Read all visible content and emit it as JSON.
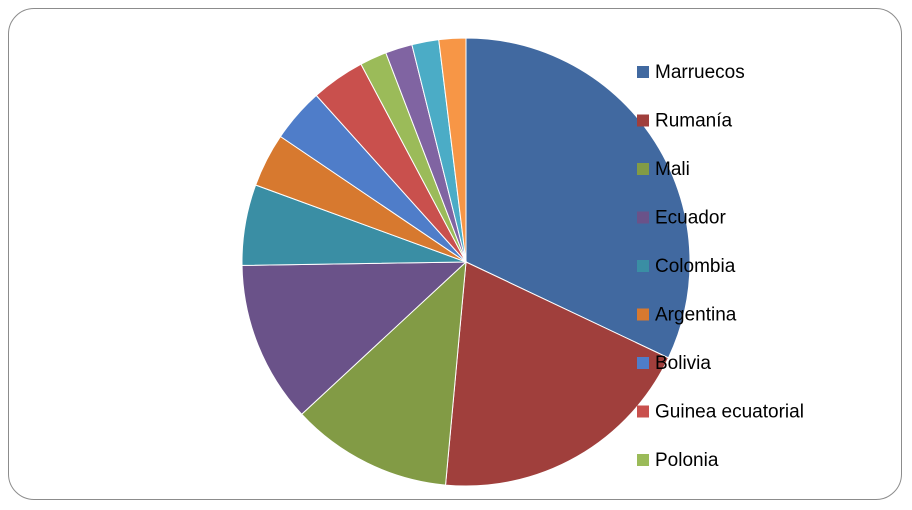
{
  "chart_data": {
    "type": "pie",
    "title": "",
    "slices": [
      {
        "label": "Marruecos",
        "value": 33,
        "color": "#4169A0"
      },
      {
        "label": "Rumanía",
        "value": 20,
        "color": "#A03F3C"
      },
      {
        "label": "Mali",
        "value": 12,
        "color": "#829B45"
      },
      {
        "label": "Ecuador",
        "value": 12,
        "color": "#6A5289"
      },
      {
        "label": "Colombia",
        "value": 6,
        "color": "#3A8EA4"
      },
      {
        "label": "Argentina",
        "value": 4,
        "color": "#D7792F"
      },
      {
        "label": "Bolivia",
        "value": 4,
        "color": "#4F7DC9"
      },
      {
        "label": "Guinea ecuatorial",
        "value": 4,
        "color": "#C9504D"
      },
      {
        "label": "Polonia",
        "value": 2,
        "color": "#9BBB59"
      },
      {
        "label": "",
        "value": 2,
        "color": "#8064A2"
      },
      {
        "label": "",
        "value": 2,
        "color": "#4BACC6"
      },
      {
        "label": "",
        "value": 2,
        "color": "#F79646"
      }
    ],
    "legend_position": "right",
    "legend_visible_count": 9
  }
}
